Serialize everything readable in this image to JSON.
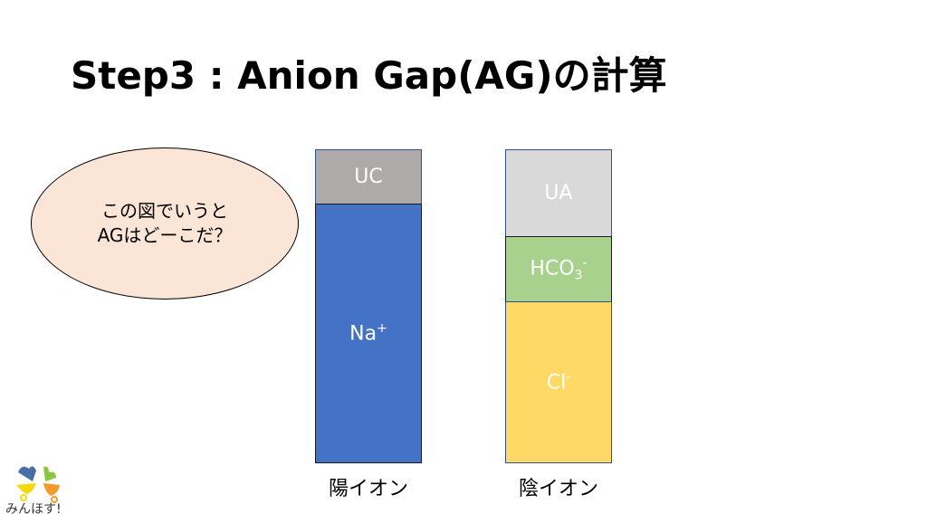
{
  "title": "Step3 : Anion Gap(AG)の計算",
  "bubble": {
    "line1": "この図でいうと",
    "line2": "AGはどーこだ？"
  },
  "cation_bar": {
    "caption": "陽イオン",
    "segments": [
      {
        "label": "UC",
        "color": "#aeaaaa"
      },
      {
        "label": "Na",
        "sup": "+",
        "color": "#4472c4"
      }
    ]
  },
  "anion_bar": {
    "caption": "陰イオン",
    "segments": [
      {
        "label": "UA",
        "color": "#d9d9d9"
      },
      {
        "label": "HCO",
        "sub": "3",
        "sup": "-",
        "color": "#a9d18e"
      },
      {
        "label": "Cl",
        "sup": "-",
        "color": "#ffd966"
      }
    ]
  },
  "logo": {
    "text": "みんほす!"
  }
}
